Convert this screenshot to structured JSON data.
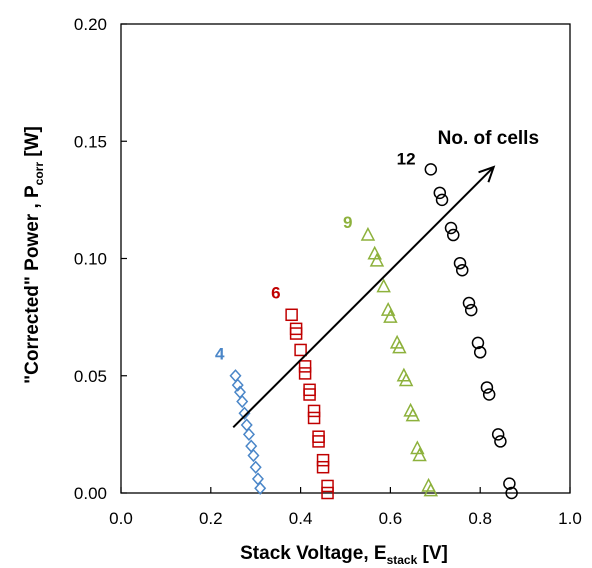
{
  "chart_data": {
    "type": "scatter",
    "xlabel": {
      "main": "Stack Voltage, E",
      "sub": "stack",
      "unit": " [V]"
    },
    "ylabel": {
      "main": "\"Corrected\" Power , P",
      "sub": "corr",
      "unit": " [W]"
    },
    "xlim": [
      0.0,
      1.0
    ],
    "ylim": [
      0.0,
      0.2
    ],
    "x_ticks": [
      "0.0",
      "0.2",
      "0.4",
      "0.6",
      "0.8",
      "1.0"
    ],
    "y_ticks": [
      "0.00",
      "0.05",
      "0.10",
      "0.15",
      "0.20"
    ],
    "grid": false,
    "series": [
      {
        "name": "4",
        "marker": "diamond",
        "color": "#4a86c8",
        "label_pos": [
          0.22,
          0.057
        ],
        "x": [
          0.255,
          0.26,
          0.265,
          0.27,
          0.275,
          0.28,
          0.285,
          0.29,
          0.295,
          0.3,
          0.305,
          0.31
        ],
        "y": [
          0.05,
          0.046,
          0.043,
          0.039,
          0.034,
          0.029,
          0.025,
          0.02,
          0.016,
          0.011,
          0.006,
          0.002
        ]
      },
      {
        "name": "6",
        "marker": "square",
        "color": "#c00000",
        "label_pos": [
          0.345,
          0.083
        ],
        "x": [
          0.38,
          0.39,
          0.39,
          0.4,
          0.41,
          0.41,
          0.42,
          0.42,
          0.43,
          0.43,
          0.44,
          0.44,
          0.45,
          0.45,
          0.46,
          0.46
        ],
        "y": [
          0.076,
          0.07,
          0.068,
          0.061,
          0.054,
          0.051,
          0.044,
          0.042,
          0.035,
          0.032,
          0.024,
          0.022,
          0.014,
          0.011,
          0.003,
          0.0
        ]
      },
      {
        "name": "9",
        "marker": "triangle",
        "color": "#8db13c",
        "label_pos": [
          0.505,
          0.113
        ],
        "x": [
          0.55,
          0.565,
          0.57,
          0.585,
          0.595,
          0.6,
          0.615,
          0.62,
          0.63,
          0.635,
          0.645,
          0.65,
          0.66,
          0.665,
          0.685,
          0.69
        ],
        "y": [
          0.11,
          0.102,
          0.099,
          0.088,
          0.078,
          0.075,
          0.064,
          0.062,
          0.05,
          0.048,
          0.035,
          0.033,
          0.019,
          0.016,
          0.003,
          0.001
        ]
      },
      {
        "name": "12",
        "marker": "circle",
        "color": "#000000",
        "label_pos": [
          0.635,
          0.14
        ],
        "x": [
          0.69,
          0.71,
          0.715,
          0.735,
          0.74,
          0.755,
          0.76,
          0.775,
          0.78,
          0.795,
          0.8,
          0.815,
          0.82,
          0.84,
          0.845,
          0.865,
          0.87
        ],
        "y": [
          0.138,
          0.128,
          0.125,
          0.113,
          0.11,
          0.098,
          0.095,
          0.081,
          0.078,
          0.064,
          0.06,
          0.045,
          0.042,
          0.025,
          0.022,
          0.004,
          0.0
        ]
      }
    ],
    "annotation": {
      "text": "No. of cells",
      "arrow_from": [
        0.25,
        0.028
      ],
      "arrow_to": [
        0.83,
        0.139
      ]
    }
  }
}
